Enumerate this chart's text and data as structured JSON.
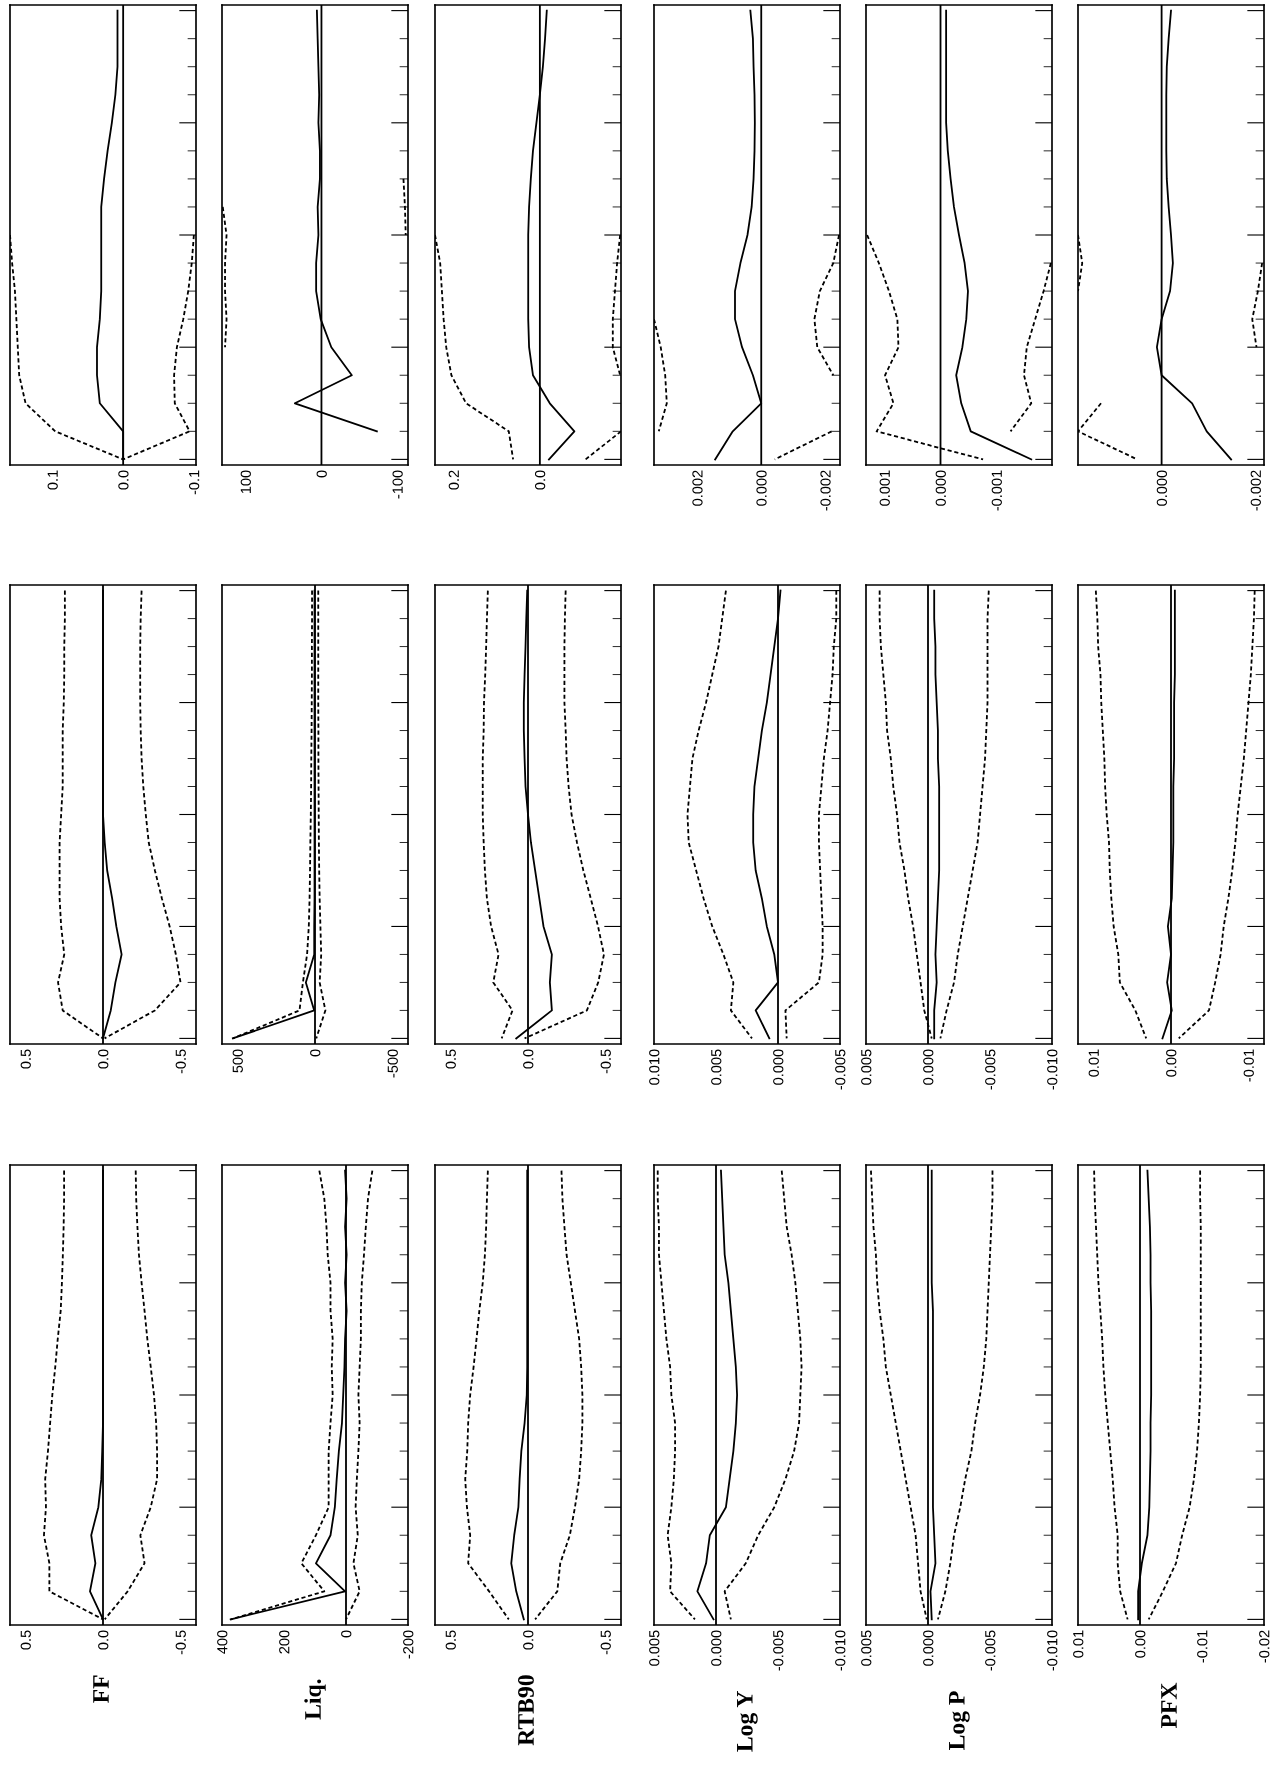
{
  "chart_data": [
    {
      "type": "line",
      "orientation": "horizontal",
      "tick_labels": "x",
      "categories": [
        null,
        null,
        null,
        null,
        null,
        null,
        null,
        null,
        null,
        null,
        null,
        null,
        null,
        null,
        null,
        null,
        null
      ],
      "xlim": [
        0.16,
        -0.103
      ],
      "xticks": [
        0.1,
        {
          "value": 0,
          "label": "0.0"
        },
        -0.1
      ],
      "ref_lines": [
        {
          "axis": "x",
          "value": 0
        }
      ],
      "series": [
        {
          "color": "#000000",
          "line_style": "solid",
          "values": [
            0.008,
            0.008,
            0.008,
            0.011,
            0.016,
            0.022,
            0.027,
            0.031,
            0.031,
            0.031,
            0.031,
            0.033,
            0.037,
            0.037,
            0.033,
            0,
            0
          ]
        },
        {
          "color": "#000000",
          "line_style": "dashed",
          "values": [
            null,
            null,
            null,
            null,
            null,
            null,
            null,
            null,
            0.16,
            0.157,
            0.153,
            0.151,
            0.149,
            0.147,
            0.138,
            0.096,
            0
          ]
        },
        {
          "color": "#000000",
          "line_style": "dashed",
          "values": [
            null,
            null,
            null,
            null,
            null,
            null,
            null,
            null,
            -0.1,
            -0.097,
            -0.092,
            -0.085,
            -0.076,
            -0.072,
            -0.073,
            -0.094,
            0
          ]
        }
      ]
    },
    {
      "type": "line",
      "orientation": "horizontal",
      "tick_labels": "x",
      "categories": [
        null,
        null,
        null,
        null,
        null,
        null,
        null,
        null,
        null,
        null,
        null,
        null,
        null,
        null,
        null,
        null,
        null
      ],
      "xlim": [
        131,
        -114
      ],
      "xticks": [
        100,
        0,
        -100
      ],
      "ref_lines": [
        {
          "axis": "x",
          "value": 0
        }
      ],
      "series": [
        {
          "color": "#000000",
          "line_style": "solid",
          "values": [
            6,
            5,
            4,
            3,
            4,
            2,
            2,
            5,
            4,
            7,
            7,
            1,
            -13,
            -40,
            35,
            -73,
            null
          ]
        },
        {
          "color": "#000000",
          "line_style": "dashed",
          "values": [
            null,
            null,
            null,
            null,
            null,
            null,
            null,
            130,
            125,
            127,
            127,
            125,
            127,
            null,
            null,
            null,
            null
          ]
        },
        {
          "color": "#000000",
          "line_style": "dashed",
          "values": [
            null,
            null,
            null,
            null,
            null,
            null,
            -108,
            -110,
            -111,
            null,
            null,
            null,
            null,
            null,
            null,
            null,
            null
          ]
        }
      ]
    },
    {
      "type": "line",
      "orientation": "horizontal",
      "tick_labels": "x",
      "categories": [
        null,
        null,
        null,
        null,
        null,
        null,
        null,
        null,
        null,
        null,
        null,
        null,
        null,
        null,
        null,
        null,
        null
      ],
      "xlim": [
        0.243,
        -0.188
      ],
      "xticks": [
        0.2,
        {
          "value": 0,
          "label": "0.0"
        }
      ],
      "ref_lines": [
        {
          "axis": "x",
          "value": 0
        }
      ],
      "series": [
        {
          "color": "#000000",
          "line_style": "solid",
          "values": [
            -0.016,
            -0.012,
            -0.007,
            0,
            0.008,
            0.016,
            0.021,
            0.025,
            0.027,
            0.027,
            0.027,
            0.027,
            0.025,
            0.016,
            -0.023,
            -0.08,
            -0.021
          ]
        },
        {
          "color": "#000000",
          "line_style": "dashed",
          "values": [
            null,
            null,
            null,
            null,
            null,
            null,
            null,
            null,
            0.243,
            0.231,
            0.227,
            0.223,
            0.217,
            0.205,
            0.171,
            0.072,
            0.062
          ]
        },
        {
          "color": "#000000",
          "line_style": "dashed",
          "values": [
            null,
            null,
            null,
            null,
            null,
            null,
            null,
            null,
            -0.186,
            -0.179,
            -0.174,
            -0.169,
            -0.169,
            -0.186,
            null,
            -0.188,
            -0.106
          ]
        }
      ]
    },
    {
      "type": "line",
      "orientation": "horizontal",
      "tick_labels": "x",
      "categories": [
        null,
        null,
        null,
        null,
        null,
        null,
        null,
        null,
        null,
        null,
        null,
        null,
        null,
        null,
        null,
        null,
        null
      ],
      "xlim": [
        0.00335,
        -0.00246
      ],
      "xticks": [
        0.002,
        {
          "value": 0,
          "label": "0.000"
        },
        -0.002
      ],
      "ref_lines": [
        {
          "axis": "x",
          "value": 0
        }
      ],
      "series": [
        {
          "color": "#000000",
          "line_style": "solid",
          "values": [
            0.00034,
            0.00026,
            0.00024,
            0.00021,
            0.0002,
            0.00021,
            0.00024,
            0.0003,
            0.00043,
            0.00065,
            0.00082,
            0.00082,
            0.0006,
            0.00026,
            0,
            0.00089,
            0.00144
          ]
        },
        {
          "color": "#000000",
          "line_style": "dashed",
          "values": [
            null,
            null,
            null,
            null,
            null,
            null,
            null,
            null,
            null,
            null,
            null,
            0.00335,
            0.00314,
            0.003,
            0.00295,
            0.0032,
            null
          ]
        },
        {
          "color": "#000000",
          "line_style": "dashed",
          "values": [
            null,
            null,
            null,
            null,
            null,
            null,
            null,
            null,
            -0.00243,
            -0.00225,
            -0.00183,
            -0.00166,
            -0.00175,
            -0.00225,
            null,
            -0.0022,
            -0.00042
          ]
        }
      ]
    },
    {
      "type": "line",
      "orientation": "horizontal",
      "tick_labels": "x",
      "categories": [
        null,
        null,
        null,
        null,
        null,
        null,
        null,
        null,
        null,
        null,
        null,
        null,
        null,
        null,
        null,
        null,
        null
      ],
      "xlim": [
        0.00133,
        -0.00199
      ],
      "xticks": [
        0.001,
        {
          "value": 0,
          "label": "0.000"
        },
        -0.001
      ],
      "ref_lines": [
        {
          "axis": "x",
          "value": 0
        }
      ],
      "series": [
        {
          "color": "#000000",
          "line_style": "solid",
          "values": [
            -0.0001,
            -0.0001,
            -0.0001,
            -0.0001,
            -0.0001,
            -0.00013,
            -0.00018,
            -0.00024,
            -0.00033,
            -0.00043,
            -0.00049,
            -0.00046,
            -0.00039,
            -0.00028,
            -0.00037,
            -0.00054,
            -0.00162
          ]
        },
        {
          "color": "#000000",
          "line_style": "dashed",
          "values": [
            null,
            null,
            null,
            null,
            null,
            null,
            null,
            null,
            0.00131,
            0.0011,
            0.00092,
            0.00077,
            0.00075,
            0.00099,
            0.00084,
            0.00114,
            -0.00076
          ]
        },
        {
          "color": "#000000",
          "line_style": "dashed",
          "values": [
            null,
            null,
            null,
            null,
            null,
            null,
            null,
            null,
            null,
            -0.00197,
            -0.00184,
            -0.00169,
            -0.00154,
            -0.00149,
            -0.00162,
            -0.00125,
            null
          ]
        }
      ]
    },
    {
      "type": "line",
      "orientation": "horizontal",
      "tick_labels": "x",
      "categories": [
        null,
        null,
        null,
        null,
        null,
        null,
        null,
        null,
        null,
        null,
        null,
        null,
        null,
        null,
        null,
        null,
        null
      ],
      "xlim": [
        0.00178,
        -0.00218
      ],
      "xticks": [
        {
          "value": 0,
          "label": "0.000"
        },
        -0.002
      ],
      "ref_lines": [
        {
          "axis": "x",
          "value": 0
        }
      ],
      "series": [
        {
          "color": "#000000",
          "line_style": "solid",
          "values": [
            -0.0002,
            -0.00015,
            -0.00011,
            -0.0001,
            -0.0001,
            -0.0001,
            -0.00011,
            -0.00015,
            -0.0002,
            -0.00024,
            -0.00018,
            0,
            0.0001,
            0,
            -0.00065,
            -0.00096,
            -0.00148
          ]
        },
        {
          "color": "#000000",
          "line_style": "dashed",
          "values": [
            null,
            null,
            null,
            null,
            null,
            null,
            null,
            null,
            0.00178,
            0.00169,
            0.00178,
            null,
            null,
            null,
            0.00129,
            0.00178,
            0.00052
          ]
        },
        {
          "color": "#000000",
          "line_style": "dashed",
          "values": [
            null,
            null,
            null,
            null,
            null,
            null,
            null,
            null,
            null,
            -0.00214,
            -0.00205,
            -0.00193,
            -0.00202,
            null,
            null,
            null,
            null
          ]
        }
      ]
    },
    {
      "type": "line",
      "orientation": "horizontal",
      "tick_labels": "x",
      "categories": [
        null,
        null,
        null,
        null,
        null,
        null,
        null,
        null,
        null,
        null,
        null,
        null,
        null,
        null,
        null,
        null,
        null
      ],
      "xlim": [
        0.6,
        -0.6
      ],
      "xticks": [
        0.5,
        {
          "value": 0,
          "label": "0.0"
        },
        -0.5
      ],
      "ref_lines": [
        {
          "axis": "x",
          "value": 0
        }
      ],
      "series": [
        {
          "color": "#000000",
          "line_style": "solid",
          "values": [
            0,
            0,
            0,
            0,
            0,
            0,
            0,
            0,
            0,
            -0.011,
            -0.027,
            -0.059,
            -0.086,
            -0.12,
            -0.08,
            -0.05,
            0
          ]
        },
        {
          "color": "#000000",
          "line_style": "dashed",
          "values": [
            0.246,
            0.246,
            0.25,
            0.25,
            0.253,
            0.26,
            0.26,
            0.26,
            0.27,
            0.28,
            0.28,
            0.28,
            0.27,
            0.25,
            0.29,
            0.26,
            0
          ]
        },
        {
          "color": "#000000",
          "line_style": "dashed",
          "values": [
            -0.249,
            -0.243,
            -0.24,
            -0.24,
            -0.24,
            -0.243,
            -0.249,
            -0.26,
            -0.276,
            -0.295,
            -0.335,
            -0.38,
            -0.43,
            -0.47,
            -0.5,
            -0.335,
            -0.01
          ]
        }
      ]
    },
    {
      "type": "line",
      "orientation": "horizontal",
      "tick_labels": "x",
      "categories": [
        null,
        null,
        null,
        null,
        null,
        null,
        null,
        null,
        null,
        null,
        null,
        null,
        null,
        null,
        null,
        null,
        null
      ],
      "xlim": [
        600,
        -600
      ],
      "xticks": [
        500,
        0,
        -500
      ],
      "ref_lines": [
        {
          "axis": "x",
          "value": 0
        }
      ],
      "series": [
        {
          "color": "#000000",
          "line_style": "solid",
          "values": [
            3,
            3,
            3,
            3,
            3,
            3,
            3,
            3,
            3,
            3,
            3,
            3,
            5,
            5,
            59,
            5,
            530
          ]
        },
        {
          "color": "#000000",
          "line_style": "dashed",
          "values": [
            19,
            19,
            20,
            20,
            21,
            22,
            24,
            25,
            27,
            30,
            32,
            35,
            40,
            51,
            78,
            100,
            530
          ]
        },
        {
          "color": "#000000",
          "line_style": "dashed",
          "values": [
            -21,
            -21,
            -21,
            -21,
            -21,
            -22,
            -22,
            -23,
            -24,
            -25,
            -27,
            -30,
            -35,
            -40,
            -30,
            -67,
            -8
          ]
        }
      ]
    },
    {
      "type": "line",
      "orientation": "horizontal",
      "tick_labels": "x",
      "categories": [
        null,
        null,
        null,
        null,
        null,
        null,
        null,
        null,
        null,
        null,
        null,
        null,
        null,
        null,
        null,
        null,
        null
      ],
      "xlim": [
        0.6,
        -0.6
      ],
      "xticks": [
        0.5,
        {
          "value": 0,
          "label": "0.0"
        },
        -0.5
      ],
      "ref_lines": [
        {
          "axis": "x",
          "value": 0
        }
      ],
      "series": [
        {
          "color": "#000000",
          "line_style": "solid",
          "values": [
            0.005,
            0.011,
            0.016,
            0.022,
            0.027,
            0.027,
            0.022,
            0.016,
            0,
            -0.019,
            -0.046,
            -0.073,
            -0.1,
            -0.154,
            -0.141,
            -0.154,
            0.076
          ]
        },
        {
          "color": "#000000",
          "line_style": "dashed",
          "values": [
            0.259,
            0.265,
            0.27,
            0.276,
            0.284,
            0.286,
            0.292,
            0.292,
            0.292,
            0.286,
            0.278,
            0.265,
            0.238,
            0.19,
            0.224,
            0.1,
            0.17
          ]
        },
        {
          "color": "#000000",
          "line_style": "dashed",
          "values": [
            -0.243,
            -0.238,
            -0.235,
            -0.235,
            -0.235,
            -0.243,
            -0.249,
            -0.262,
            -0.281,
            -0.316,
            -0.357,
            -0.405,
            -0.452,
            -0.49,
            -0.453,
            -0.38,
            0.022
          ]
        }
      ]
    },
    {
      "type": "line",
      "orientation": "horizontal",
      "tick_labels": "x",
      "categories": [
        null,
        null,
        null,
        null,
        null,
        null,
        null,
        null,
        null,
        null,
        null,
        null,
        null,
        null,
        null,
        null,
        null
      ],
      "xlim": [
        0.01,
        -0.005
      ],
      "xticks": [
        {
          "value": 0.01,
          "label": "0.010"
        },
        0.005,
        {
          "value": 0,
          "label": "0.000"
        },
        -0.005
      ],
      "ref_lines": [
        {
          "axis": "x",
          "value": 0
        }
      ],
      "series": [
        {
          "color": "#000000",
          "line_style": "solid",
          "values": [
            -0.0002,
            0,
            0.0003,
            0.0006,
            0.0009,
            0.0013,
            0.0016,
            0.0019,
            0.002,
            0.002,
            0.0018,
            0.0013,
            0.0009,
            0.0003,
            0,
            0.0018,
            0.0007
          ]
        },
        {
          "color": "#000000",
          "line_style": "dashed",
          "values": [
            0.0042,
            0.0045,
            0.0048,
            0.0053,
            0.0058,
            0.0064,
            0.0069,
            0.0071,
            0.0073,
            0.0072,
            0.0066,
            0.006,
            0.0053,
            0.0044,
            0.0036,
            0.0038,
            0.0021
          ]
        },
        {
          "color": "#000000",
          "line_style": "dashed",
          "values": [
            -0.0047,
            -0.0047,
            -0.0045,
            -0.0044,
            -0.0042,
            -0.004,
            -0.0037,
            -0.0035,
            -0.0033,
            -0.0033,
            -0.0034,
            -0.0035,
            -0.0036,
            -0.0036,
            -0.0033,
            -0.0006,
            -0.0007
          ]
        }
      ]
    },
    {
      "type": "line",
      "orientation": "horizontal",
      "tick_labels": "x",
      "categories": [
        null,
        null,
        null,
        null,
        null,
        null,
        null,
        null,
        null,
        null,
        null,
        null,
        null,
        null,
        null,
        null,
        null
      ],
      "xlim": [
        0.005,
        -0.01
      ],
      "xticks": [
        0.005,
        {
          "value": 0,
          "label": "0.000"
        },
        -0.005,
        {
          "value": -0.01,
          "label": "-0.010"
        }
      ],
      "ref_lines": [
        {
          "axis": "x",
          "value": 0
        }
      ],
      "series": [
        {
          "color": "#000000",
          "line_style": "solid",
          "values": [
            -0.0005,
            -0.0005,
            -0.0006,
            -0.0006,
            -0.0007,
            -0.0008,
            -0.0008,
            -0.0009,
            -0.0009,
            -0.0009,
            -0.0009,
            -0.0008,
            -0.0007,
            -0.0006,
            -0.0007,
            -0.0005,
            -0.0005
          ]
        },
        {
          "color": "#000000",
          "line_style": "dashed",
          "values": [
            0.0039,
            0.0039,
            0.0038,
            0.0036,
            0.0034,
            0.0033,
            0.003,
            0.0028,
            0.0025,
            0.0023,
            0.0019,
            0.0016,
            0.0012,
            0.0009,
            0.0006,
            0.0003,
            -0.0003
          ]
        },
        {
          "color": "#000000",
          "line_style": "dashed",
          "values": [
            -0.0049,
            -0.0048,
            -0.0048,
            -0.0048,
            -0.0048,
            -0.0047,
            -0.0046,
            -0.0044,
            -0.0042,
            -0.004,
            -0.0036,
            -0.0032,
            -0.0028,
            -0.0024,
            -0.0021,
            -0.0015,
            -0.001
          ]
        }
      ]
    },
    {
      "type": "line",
      "orientation": "horizontal",
      "tick_labels": "x",
      "categories": [
        null,
        null,
        null,
        null,
        null,
        null,
        null,
        null,
        null,
        null,
        null,
        null,
        null,
        null,
        null,
        null,
        null
      ],
      "xlim": [
        0.012,
        -0.012
      ],
      "xticks": [
        0.01,
        {
          "value": 0,
          "label": "0.00"
        },
        -0.01
      ],
      "ref_lines": [
        {
          "axis": "x",
          "value": 0
        }
      ],
      "series": [
        {
          "color": "#000000",
          "line_style": "solid",
          "values": [
            -0.0005,
            -0.0005,
            -0.0005,
            -0.0005,
            -0.0004,
            -0.0004,
            -0.0004,
            -0.0003,
            -0.0003,
            -0.0003,
            -0.0002,
            -0.0001,
            0.0004,
            0,
            0.0005,
            -0.0001,
            0.0011
          ]
        },
        {
          "color": "#000000",
          "line_style": "dashed",
          "values": [
            0.0097,
            0.0095,
            0.0094,
            0.0091,
            0.009,
            0.0088,
            0.0086,
            0.0085,
            0.0083,
            0.008,
            0.0079,
            0.0077,
            0.0074,
            0.0068,
            0.0066,
            0.0046,
            0.0032
          ]
        },
        {
          "color": "#000000",
          "line_style": "dashed",
          "values": [
            -0.0108,
            -0.0107,
            -0.0105,
            -0.0103,
            -0.01,
            -0.0097,
            -0.0094,
            -0.009,
            -0.0086,
            -0.0083,
            -0.0079,
            -0.0074,
            -0.0068,
            -0.0064,
            -0.0057,
            -0.0049,
            -0.001
          ]
        }
      ]
    },
    {
      "type": "line",
      "orientation": "horizontal",
      "tick_labels": "x",
      "ylabel": "FF",
      "categories": [
        null,
        null,
        null,
        null,
        null,
        null,
        null,
        null,
        null,
        null,
        null,
        null,
        null,
        null,
        null,
        null,
        null
      ],
      "xlim": [
        0.6,
        -0.6
      ],
      "xticks": [
        0.5,
        {
          "value": 0,
          "label": "0.0"
        },
        -0.5
      ],
      "ref_lines": [
        {
          "axis": "x",
          "value": 0
        }
      ],
      "series": [
        {
          "color": "#000000",
          "line_style": "solid",
          "values": [
            0,
            0,
            0,
            0,
            0,
            0,
            0,
            0,
            0,
            0,
            0.005,
            0.011,
            0.03,
            0.076,
            0.049,
            0.084,
            0
          ]
        },
        {
          "color": "#000000",
          "line_style": "dashed",
          "values": [
            0.251,
            0.251,
            0.254,
            0.259,
            0.265,
            0.273,
            0.292,
            0.308,
            0.327,
            0.341,
            0.355,
            0.373,
            0.368,
            0.381,
            0.346,
            0.346,
            0
          ]
        },
        {
          "color": "#000000",
          "line_style": "dashed",
          "values": [
            -0.211,
            -0.214,
            -0.222,
            -0.232,
            -0.249,
            -0.268,
            -0.286,
            -0.308,
            -0.329,
            -0.343,
            -0.349,
            -0.349,
            -0.308,
            -0.241,
            -0.268,
            -0.159,
            -0.011
          ]
        }
      ]
    },
    {
      "type": "line",
      "orientation": "horizontal",
      "tick_labels": "x",
      "ylabel": "Liq.",
      "categories": [
        null,
        null,
        null,
        null,
        null,
        null,
        null,
        null,
        null,
        null,
        null,
        null,
        null,
        null,
        null,
        null,
        null
      ],
      "xlim": [
        400,
        -200
      ],
      "xticks": [
        400,
        200,
        0,
        -200
      ],
      "ref_lines": [
        {
          "axis": "x",
          "value": 0
        }
      ],
      "series": [
        {
          "color": "#000000",
          "line_style": "solid",
          "values": [
            3,
            -2,
            3,
            -2,
            3,
            -2,
            3,
            5,
            9,
            13,
            23,
            30,
            36,
            50,
            97,
            3,
            372
          ]
        },
        {
          "color": "#000000",
          "line_style": "dashed",
          "values": [
            86,
            70,
            63,
            59,
            50,
            50,
            43,
            46,
            43,
            50,
            56,
            56,
            56,
            97,
            144,
            70,
            372
          ]
        },
        {
          "color": "#000000",
          "line_style": "dashed",
          "values": [
            -85,
            -71,
            -64,
            -58,
            -51,
            -48,
            -48,
            -44,
            -40,
            -44,
            -40,
            -35,
            -31,
            -38,
            -24,
            -44,
            0
          ]
        }
      ]
    },
    {
      "type": "line",
      "orientation": "horizontal",
      "tick_labels": "x",
      "ylabel": "RTB90",
      "categories": [
        null,
        null,
        null,
        null,
        null,
        null,
        null,
        null,
        null,
        null,
        null,
        null,
        null,
        null,
        null,
        null,
        null
      ],
      "xlim": [
        0.6,
        -0.6
      ],
      "xticks": [
        0.5,
        {
          "value": 0,
          "label": "0.0"
        },
        -0.5
      ],
      "ref_lines": [
        {
          "axis": "x",
          "value": 0
        }
      ],
      "series": [
        {
          "color": "#000000",
          "line_style": "solid",
          "values": [
            0.005,
            0.005,
            0.005,
            0.005,
            0.005,
            0.005,
            0.005,
            0.005,
            0.008,
            0.022,
            0.043,
            0.054,
            0.062,
            0.089,
            0.108,
            0.076,
            0.027
          ]
        },
        {
          "color": "#000000",
          "line_style": "dashed",
          "values": [
            0.259,
            0.265,
            0.27,
            0.278,
            0.292,
            0.314,
            0.332,
            0.351,
            0.373,
            0.386,
            0.392,
            0.405,
            0.394,
            0.373,
            0.386,
            0.251,
            0.124
          ]
        },
        {
          "color": "#000000",
          "line_style": "dashed",
          "values": [
            -0.216,
            -0.222,
            -0.235,
            -0.249,
            -0.276,
            -0.303,
            -0.33,
            -0.343,
            -0.351,
            -0.351,
            -0.343,
            -0.33,
            -0.303,
            -0.27,
            -0.208,
            -0.189,
            -0.046
          ]
        }
      ]
    },
    {
      "type": "line",
      "orientation": "horizontal",
      "tick_labels": "x",
      "ylabel": "Log Y",
      "categories": [
        null,
        null,
        null,
        null,
        null,
        null,
        null,
        null,
        null,
        null,
        null,
        null,
        null,
        null,
        null,
        null,
        null
      ],
      "xlim": [
        0.005,
        -0.01
      ],
      "xticks": [
        0.005,
        {
          "value": 0,
          "label": "0.000"
        },
        -0.005,
        {
          "value": -0.01,
          "label": "-0.010"
        }
      ],
      "ref_lines": [
        {
          "axis": "x",
          "value": 0
        }
      ],
      "series": [
        {
          "color": "#000000",
          "line_style": "solid",
          "values": [
            -0.0004,
            -0.0005,
            -0.0006,
            -0.0007,
            -0.001,
            -0.0012,
            -0.0014,
            -0.0016,
            -0.0017,
            -0.0016,
            -0.0014,
            -0.0011,
            -0.0008,
            0.0005,
            0.0008,
            0.0015,
            0.0002
          ]
        },
        {
          "color": "#000000",
          "line_style": "dashed",
          "values": [
            0.0047,
            0.0047,
            0.0046,
            0.0046,
            0.0044,
            0.0042,
            0.004,
            0.0037,
            0.0036,
            0.0033,
            0.0033,
            0.0034,
            0.0036,
            0.0039,
            0.0036,
            0.0037,
            0.0017
          ]
        },
        {
          "color": "#000000",
          "line_style": "dashed",
          "values": [
            -0.0053,
            -0.0055,
            -0.0057,
            -0.0061,
            -0.0064,
            -0.0066,
            -0.0068,
            -0.0069,
            -0.0068,
            -0.0067,
            -0.0063,
            -0.0056,
            -0.0047,
            -0.0034,
            -0.0024,
            -0.0007,
            -0.0012
          ]
        }
      ]
    },
    {
      "type": "line",
      "orientation": "horizontal",
      "tick_labels": "x",
      "ylabel": "Log P",
      "categories": [
        null,
        null,
        null,
        null,
        null,
        null,
        null,
        null,
        null,
        null,
        null,
        null,
        null,
        null,
        null,
        null,
        null
      ],
      "xlim": [
        0.005,
        -0.01
      ],
      "xticks": [
        0.005,
        {
          "value": 0,
          "label": "0.000"
        },
        -0.005,
        {
          "value": -0.01,
          "label": "-0.010"
        }
      ],
      "ref_lines": [
        {
          "axis": "x",
          "value": 0
        }
      ],
      "series": [
        {
          "color": "#000000",
          "line_style": "solid",
          "values": [
            -0.0003,
            -0.0003,
            -0.0003,
            -0.0003,
            -0.0003,
            -0.0004,
            -0.0004,
            -0.0004,
            -0.0004,
            -0.0004,
            -0.0004,
            -0.0004,
            -0.0004,
            -0.0005,
            -0.0006,
            -0.0002,
            -0.0003
          ]
        },
        {
          "color": "#000000",
          "line_style": "dashed",
          "values": [
            0.0046,
            0.0045,
            0.0044,
            0.0042,
            0.0041,
            0.0039,
            0.0036,
            0.0034,
            0.003,
            0.0026,
            0.0022,
            0.0018,
            0.0014,
            0.001,
            0.0008,
            0.0006,
            0.0001
          ]
        },
        {
          "color": "#000000",
          "line_style": "dashed",
          "values": [
            -0.0052,
            -0.0052,
            -0.0051,
            -0.005,
            -0.0049,
            -0.0048,
            -0.0047,
            -0.0045,
            -0.0042,
            -0.0038,
            -0.0035,
            -0.003,
            -0.0026,
            -0.0021,
            -0.0018,
            -0.0014,
            -0.0008
          ]
        }
      ]
    },
    {
      "type": "line",
      "orientation": "horizontal",
      "tick_labels": "x",
      "ylabel": "PFX",
      "categories": [
        null,
        null,
        null,
        null,
        null,
        null,
        null,
        null,
        null,
        null,
        null,
        null,
        null,
        null,
        null,
        null,
        null
      ],
      "xlim": [
        0.01,
        -0.02
      ],
      "xticks": [
        0.01,
        {
          "value": 0,
          "label": "0.00"
        },
        -0.01,
        -0.02
      ],
      "ref_lines": [
        {
          "axis": "x",
          "value": 0
        }
      ],
      "series": [
        {
          "color": "#000000",
          "line_style": "solid",
          "values": [
            -0.0012,
            -0.0014,
            -0.0016,
            -0.0017,
            -0.0017,
            -0.0018,
            -0.0018,
            -0.0018,
            -0.0018,
            -0.0017,
            -0.0017,
            -0.0016,
            -0.0015,
            -0.0012,
            -0.0003,
            0.0003,
            0.0003
          ]
        },
        {
          "color": "#000000",
          "line_style": "dashed",
          "values": [
            0.0074,
            0.0073,
            0.0071,
            0.0069,
            0.0067,
            0.0064,
            0.0061,
            0.0059,
            0.0056,
            0.0052,
            0.0048,
            0.0044,
            0.0041,
            0.0036,
            0.0036,
            0.0032,
            0.002
          ]
        },
        {
          "color": "#000000",
          "line_style": "dashed",
          "values": [
            -0.0097,
            -0.0097,
            -0.0098,
            -0.0098,
            -0.0098,
            -0.0098,
            -0.0098,
            -0.0098,
            -0.0097,
            -0.0095,
            -0.0092,
            -0.0087,
            -0.008,
            -0.0068,
            -0.0058,
            -0.0037,
            -0.0014
          ]
        }
      ]
    }
  ]
}
